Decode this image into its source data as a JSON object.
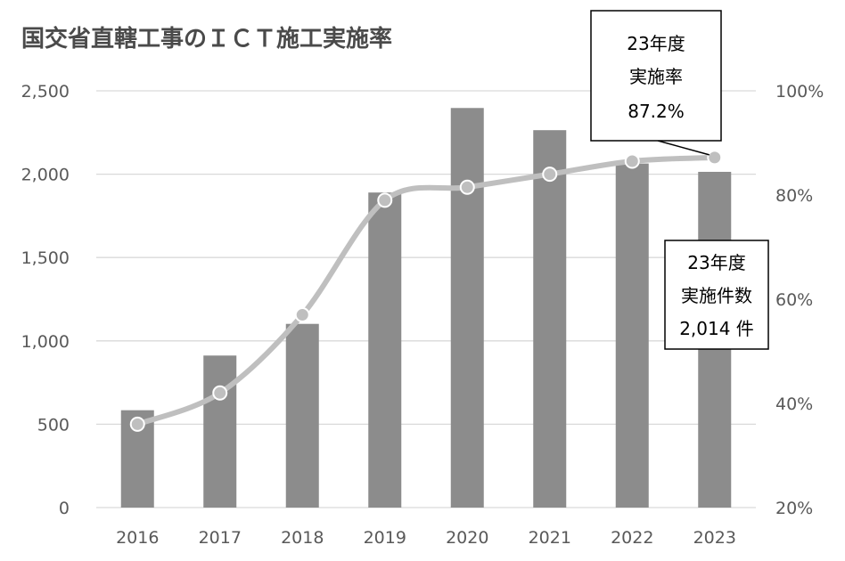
{
  "chart_data": {
    "type": "bar",
    "title": "国交省直轄工事のＩＣＴ施工実施率",
    "categories": [
      "2016",
      "2017",
      "2018",
      "2019",
      "2020",
      "2021",
      "2022",
      "2023"
    ],
    "series": [
      {
        "type": "bar",
        "axis": "left",
        "values": [
          584,
          912,
          1102,
          1890,
          2397,
          2264,
          2064,
          2014
        ]
      },
      {
        "type": "line",
        "axis": "right",
        "values": [
          36,
          42,
          57,
          79,
          81.5,
          84,
          86.5,
          87.2
        ]
      }
    ],
    "y_left": {
      "min": 0,
      "max": 2500,
      "step": 500,
      "ticks": [
        "0",
        "500",
        "1,000",
        "1,500",
        "2,000",
        "2,500"
      ]
    },
    "y_right": {
      "min": 20,
      "max": 100,
      "step": 20,
      "ticks": [
        "20%",
        "40%",
        "60%",
        "80%",
        "100%"
      ]
    },
    "grid": true,
    "colors": {
      "bar": "#8c8c8c",
      "line": "#bfbfbf",
      "grid": "#d9d9d9"
    },
    "annotations": [
      {
        "target": "line-2023",
        "lines": [
          "23年度",
          "実施率",
          "87.2%"
        ]
      },
      {
        "target": "bar-2023",
        "lines": [
          "23年度",
          "実施件数",
          "2,014 件"
        ]
      }
    ]
  }
}
